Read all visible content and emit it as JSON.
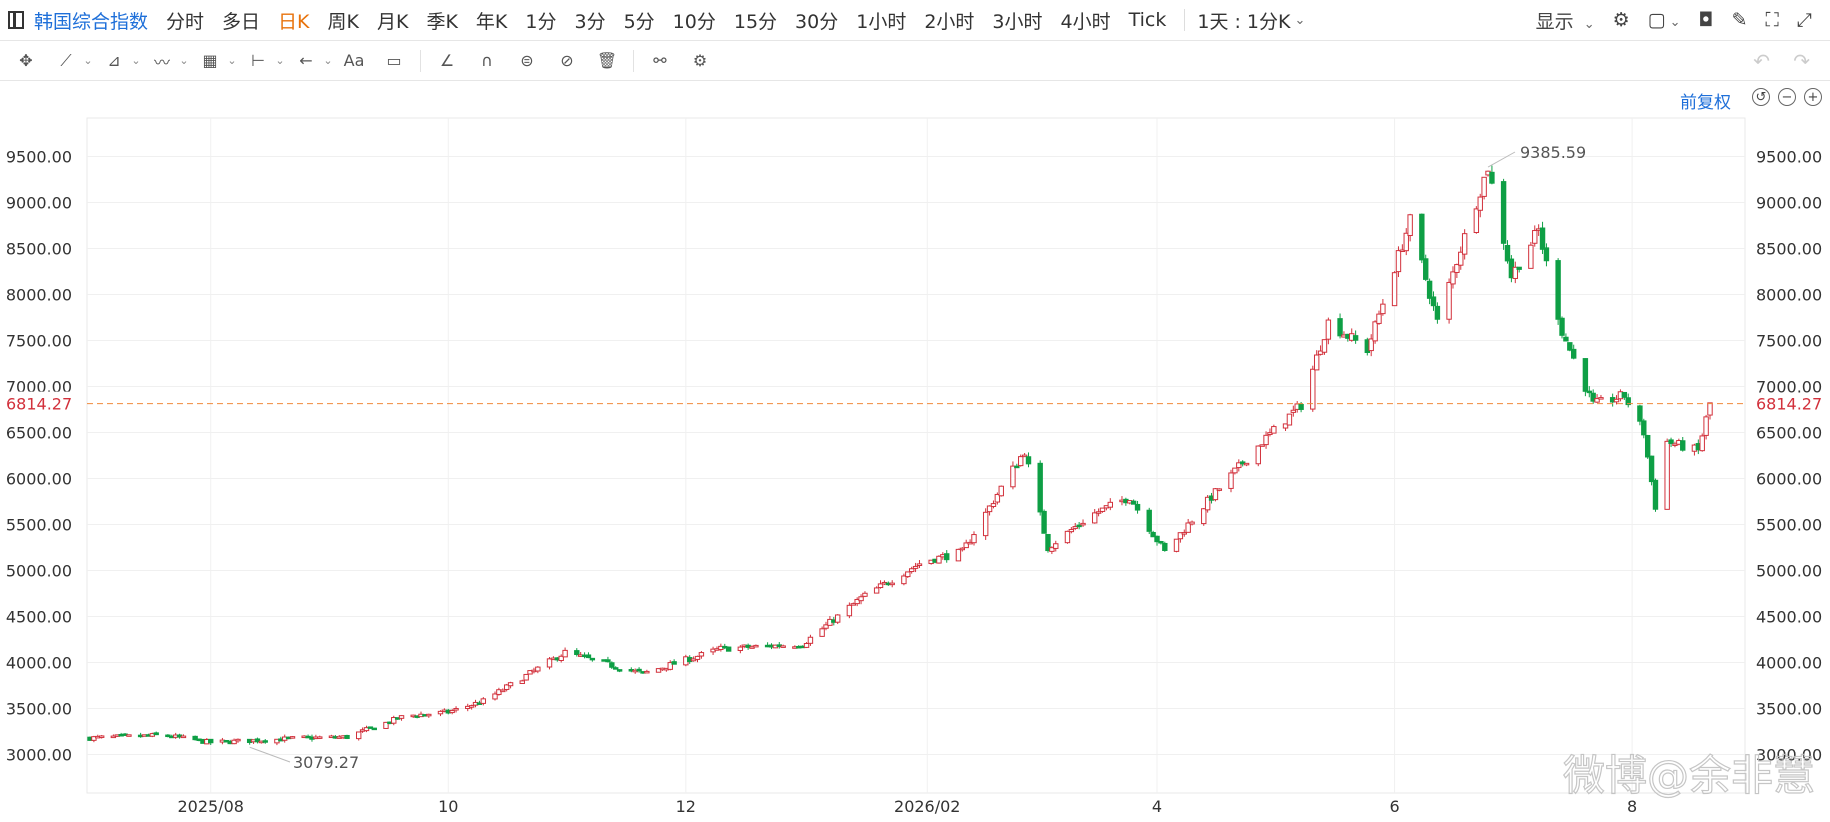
{
  "topbar": {
    "symbol": "韩国综合指数",
    "periods": [
      "分时",
      "多日",
      "日K",
      "周K",
      "月K",
      "季K",
      "年K",
      "1分",
      "3分",
      "5分",
      "10分",
      "15分",
      "30分",
      "1小时",
      "2小时",
      "3小时",
      "4小时",
      "Tick"
    ],
    "active_period": "日K",
    "range_label": "1天 : 1分K",
    "display_label": "显示"
  },
  "chart_header": {
    "adjust_label": "前复权"
  },
  "watermark": "微博@余非慧",
  "colors": {
    "up": "#d2303b",
    "down": "#0e9f45",
    "current_line": "#f08a3c",
    "accent": "#1e6fd9"
  },
  "chart_data": {
    "type": "candlestick",
    "title": "",
    "x_tick_labels": [
      "2025/08",
      "10",
      "12",
      "2026/02",
      "4",
      "6",
      "8"
    ],
    "y_ticks": [
      3000,
      3500,
      4000,
      4500,
      5000,
      5500,
      6000,
      6500,
      7000,
      7500,
      8000,
      8500,
      9000,
      9500
    ],
    "y_tick_labels": [
      "3000.00",
      "3500.00",
      "4000.00",
      "4500.00",
      "5000.00",
      "5500.00",
      "6000.00",
      "6500.00",
      "7000.00",
      "7500.00",
      "8000.00",
      "8500.00",
      "9000.00",
      "9500.00"
    ],
    "ylim": [
      2700,
      9950
    ],
    "current_price": 6814.27,
    "current_price_label": "6814.27",
    "high": 9385.59,
    "high_label": "9385.59",
    "low": 3079.27,
    "low_label": "3079.27",
    "grid": true,
    "anchors": [
      [
        "2025-07-01",
        3180
      ],
      [
        "2025-07-20",
        3210
      ],
      [
        "2025-08-01",
        3130
      ],
      [
        "2025-08-25",
        3180
      ],
      [
        "2025-09-05",
        3190
      ],
      [
        "2025-09-20",
        3420
      ],
      [
        "2025-10-01",
        3460
      ],
      [
        "2025-10-10",
        3580
      ],
      [
        "2025-10-31",
        4110
      ],
      [
        "2025-11-10",
        3990
      ],
      [
        "2025-11-20",
        3880
      ],
      [
        "2025-12-10",
        4150
      ],
      [
        "2025-12-31",
        4200
      ],
      [
        "2026-01-15",
        4700
      ],
      [
        "2026-01-31",
        5100
      ],
      [
        "2026-02-10",
        5200
      ],
      [
        "2026-02-20",
        5900
      ],
      [
        "2026-02-26",
        6300
      ],
      [
        "2026-03-04",
        5250
      ],
      [
        "2026-03-15",
        5600
      ],
      [
        "2026-03-25",
        5800
      ],
      [
        "2026-04-03",
        5200
      ],
      [
        "2026-04-15",
        5800
      ],
      [
        "2026-04-28",
        6400
      ],
      [
        "2026-05-08",
        6800
      ],
      [
        "2026-05-15",
        7700
      ],
      [
        "2026-05-25",
        7400
      ],
      [
        "2026-06-05",
        8800
      ],
      [
        "2026-06-12",
        7700
      ],
      [
        "2026-06-18",
        8500
      ],
      [
        "2026-06-25",
        9385.59
      ],
      [
        "2026-07-01",
        8200
      ],
      [
        "2026-07-08",
        8700
      ],
      [
        "2026-07-14",
        7600
      ],
      [
        "2026-07-22",
        6800
      ],
      [
        "2026-07-30",
        6900
      ],
      [
        "2026-08-04",
        6500
      ],
      [
        "2026-08-07",
        5700
      ],
      [
        "2026-08-10",
        6400
      ],
      [
        "2026-08-18",
        6300
      ],
      [
        "2026-08-21",
        6814.27
      ]
    ]
  }
}
